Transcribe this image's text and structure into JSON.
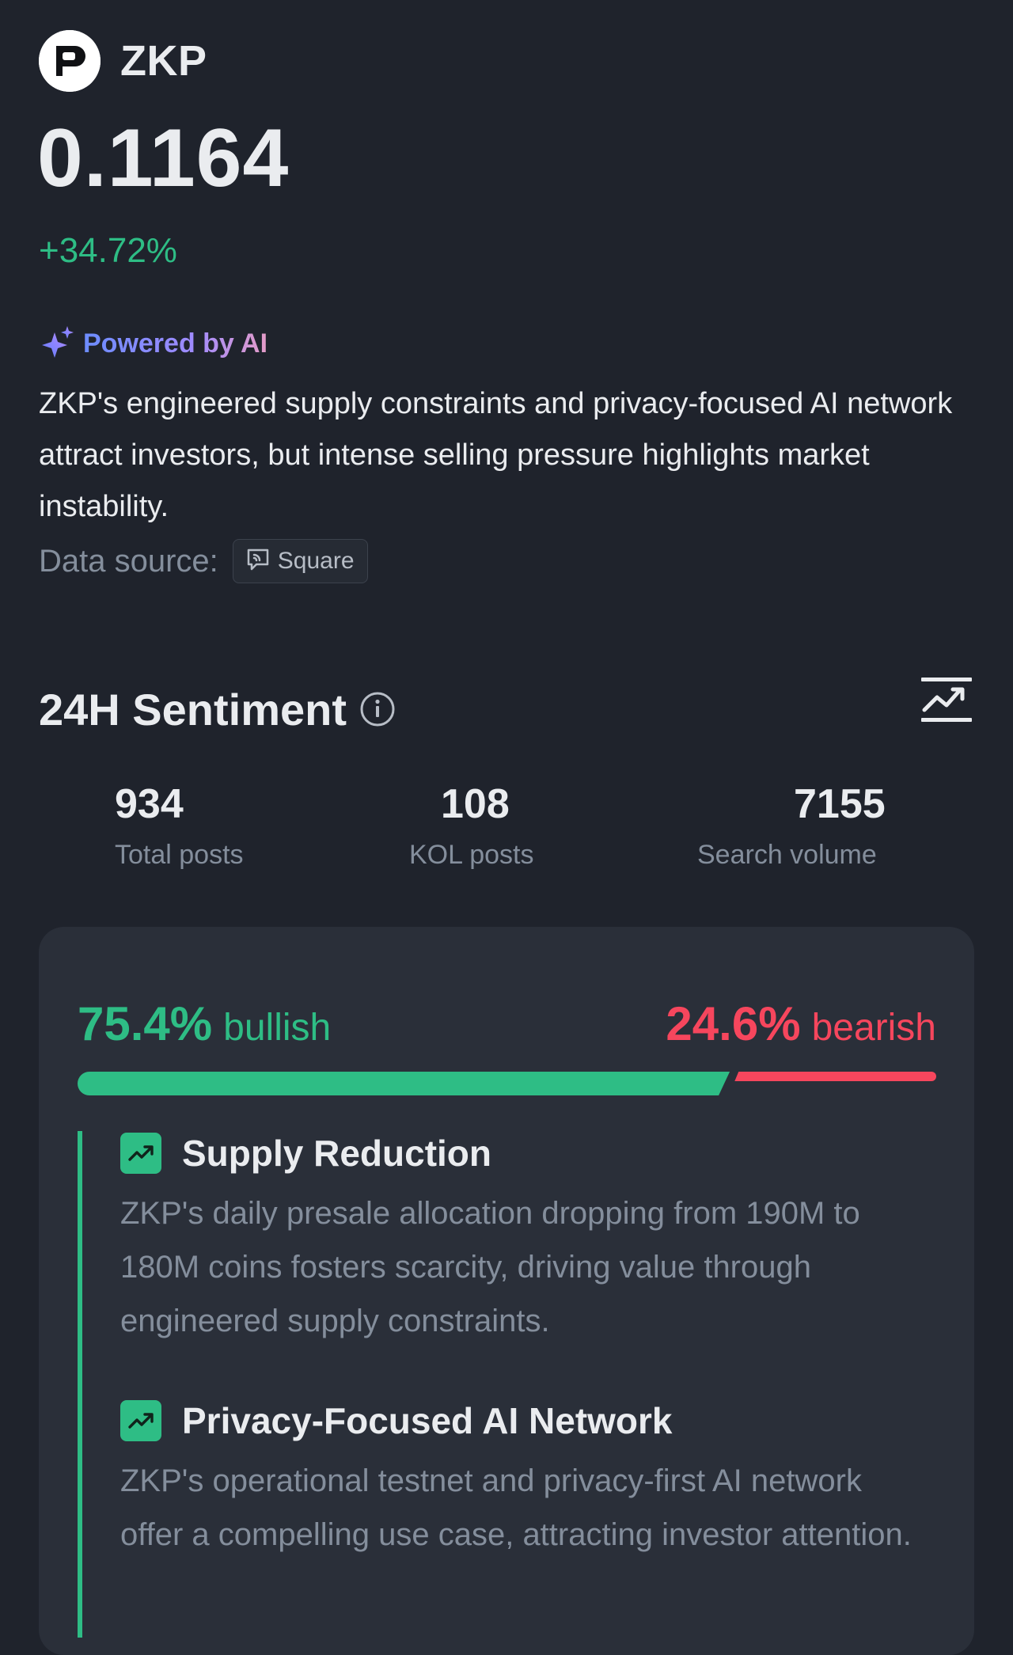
{
  "coin": {
    "symbol": "ZKP",
    "logo_letter": "P",
    "price": "0.1164",
    "change": "+34.72%"
  },
  "ai": {
    "label": "Powered by AI",
    "summary": "ZKP's engineered supply constraints and privacy-focused AI network attract investors, but intense selling pressure highlights market instability.",
    "data_source_label": "Data source:",
    "source_chip": "Square"
  },
  "sentiment": {
    "title": "24H Sentiment",
    "stats": [
      {
        "value": "934",
        "label": "Total posts"
      },
      {
        "value": "108",
        "label": "KOL posts"
      },
      {
        "value": "7155",
        "label": "Search volume"
      }
    ],
    "bullish_pct": "75.4%",
    "bullish_word": "bullish",
    "bearish_pct": "24.6%",
    "bearish_word": "bearish",
    "bullish_fraction": 0.754,
    "reasons": [
      {
        "title": "Supply Reduction",
        "description": "ZKP's daily presale allocation dropping from 190M to 180M coins fosters scarcity, driving value through engineered supply constraints."
      },
      {
        "title": "Privacy-Focused AI Network",
        "description": "ZKP's operational testnet and privacy-first AI network offer a compelling use case, attracting investor attention."
      }
    ]
  },
  "colors": {
    "background": "#1f232c",
    "card": "#2a2f39",
    "bullish": "#2ebd85",
    "bearish": "#f6465d",
    "muted": "#848e9c",
    "text": "#eaecef"
  },
  "icons": {
    "coin_logo": "zkp-logo",
    "ai": "sparkle-icon",
    "source": "square-feed-icon",
    "info": "info-icon",
    "chart": "trend-chart-icon",
    "reason": "trend-up-icon"
  }
}
